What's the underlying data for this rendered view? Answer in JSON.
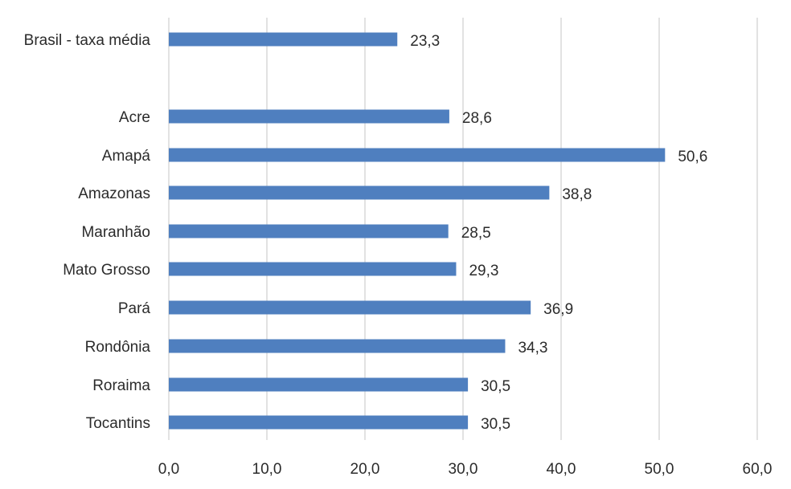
{
  "chart_data": {
    "type": "bar",
    "orientation": "horizontal",
    "categories": [
      "Brasil - taxa média",
      "Acre",
      "Amapá",
      "Amazonas",
      "Maranhão",
      "Mato Grosso",
      "Pará",
      "Rondônia",
      "Roraima",
      "Tocantins"
    ],
    "values": [
      23.3,
      28.6,
      50.6,
      38.8,
      28.5,
      29.3,
      36.9,
      34.3,
      30.5,
      30.5
    ],
    "value_labels": [
      "23,3",
      "28,6",
      "50,6",
      "38,8",
      "28,5",
      "29,3",
      "36,9",
      "34,3",
      "30,5",
      "30,5"
    ],
    "xlim": [
      0,
      60
    ],
    "x_ticks": [
      0,
      10,
      20,
      30,
      40,
      50,
      60
    ],
    "x_tick_labels": [
      "0,0",
      "10,0",
      "20,0",
      "30,0",
      "40,0",
      "50,0",
      "60,0"
    ],
    "grid": "vertical",
    "legend": "none",
    "title": "",
    "xlabel": "",
    "ylabel": "",
    "bar_color": "#4f7fbf",
    "grid_color": "#d9d9d9",
    "text_color": "#2b2b2b"
  }
}
